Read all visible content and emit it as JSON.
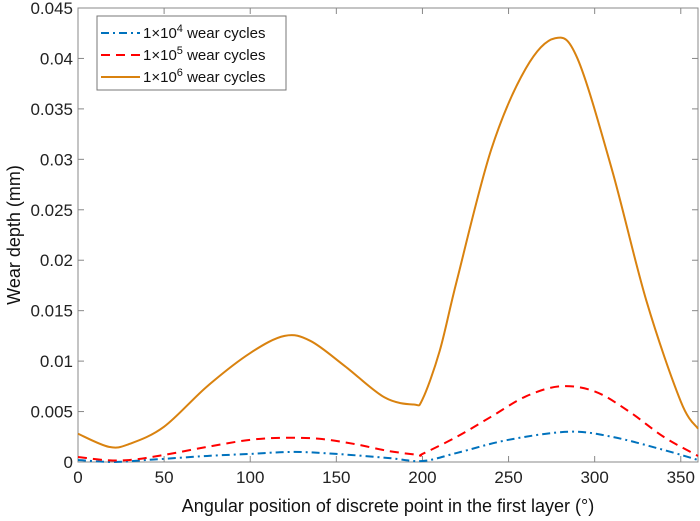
{
  "chart_data": {
    "type": "line",
    "title": "",
    "xlabel": "Angular position of discrete point in the first layer (°)",
    "ylabel": "Wear depth (mm)",
    "xlim": [
      0,
      360
    ],
    "ylim": [
      0,
      0.045
    ],
    "xticks": [
      0,
      50,
      100,
      150,
      200,
      250,
      300,
      350
    ],
    "yticks": [
      0,
      0.005,
      0.01,
      0.015,
      0.02,
      0.025,
      0.03,
      0.035,
      0.04,
      0.045
    ],
    "ytick_labels": [
      "0",
      "0.005",
      "0.01",
      "0.015",
      "0.02",
      "0.025",
      "0.03",
      "0.035",
      "0.04",
      "0.045"
    ],
    "grid": false,
    "legend_placement": "top-left",
    "series": [
      {
        "name": "1×10⁴ wear cycles",
        "name_base": "1×10",
        "name_exp": "4",
        "name_suffix": " wear cycles",
        "color": "#0072BD",
        "style": "dash-dot",
        "x": [
          0,
          20,
          40,
          75,
          100,
          125,
          150,
          180,
          200,
          220,
          250,
          285,
          310,
          340,
          360
        ],
        "y": [
          0.0002,
          0.0,
          0.0002,
          0.0006,
          0.0008,
          0.001,
          0.0008,
          0.0004,
          0.0001,
          0.0009,
          0.0022,
          0.003,
          0.0025,
          0.0012,
          0.0002
        ]
      },
      {
        "name": "1×10⁵ wear cycles",
        "name_base": "1×10",
        "name_exp": "5",
        "name_suffix": " wear cycles",
        "color": "#FF0000",
        "style": "dashed",
        "x": [
          0,
          15,
          30,
          50,
          75,
          100,
          120,
          140,
          160,
          180,
          198,
          200,
          220,
          240,
          260,
          280,
          300,
          320,
          340,
          360
        ],
        "y": [
          0.0005,
          0.0002,
          0.0002,
          0.0007,
          0.0015,
          0.0022,
          0.0024,
          0.0023,
          0.0018,
          0.0011,
          0.0007,
          0.0008,
          0.0025,
          0.0045,
          0.0065,
          0.0075,
          0.007,
          0.005,
          0.0025,
          0.0006
        ]
      },
      {
        "name": "1×10⁶ wear cycles",
        "name_base": "1×10",
        "name_exp": "6",
        "name_suffix": " wear cycles",
        "color": "#D9820F",
        "style": "solid",
        "x": [
          0,
          18,
          30,
          50,
          75,
          100,
          120,
          135,
          155,
          178,
          195,
          200,
          210,
          220,
          240,
          260,
          277,
          290,
          310,
          330,
          350,
          360
        ],
        "y": [
          0.0028,
          0.0015,
          0.0018,
          0.0035,
          0.0075,
          0.0108,
          0.0125,
          0.012,
          0.0095,
          0.0064,
          0.0057,
          0.0062,
          0.011,
          0.018,
          0.031,
          0.039,
          0.042,
          0.04,
          0.029,
          0.016,
          0.006,
          0.0033
        ]
      }
    ]
  }
}
